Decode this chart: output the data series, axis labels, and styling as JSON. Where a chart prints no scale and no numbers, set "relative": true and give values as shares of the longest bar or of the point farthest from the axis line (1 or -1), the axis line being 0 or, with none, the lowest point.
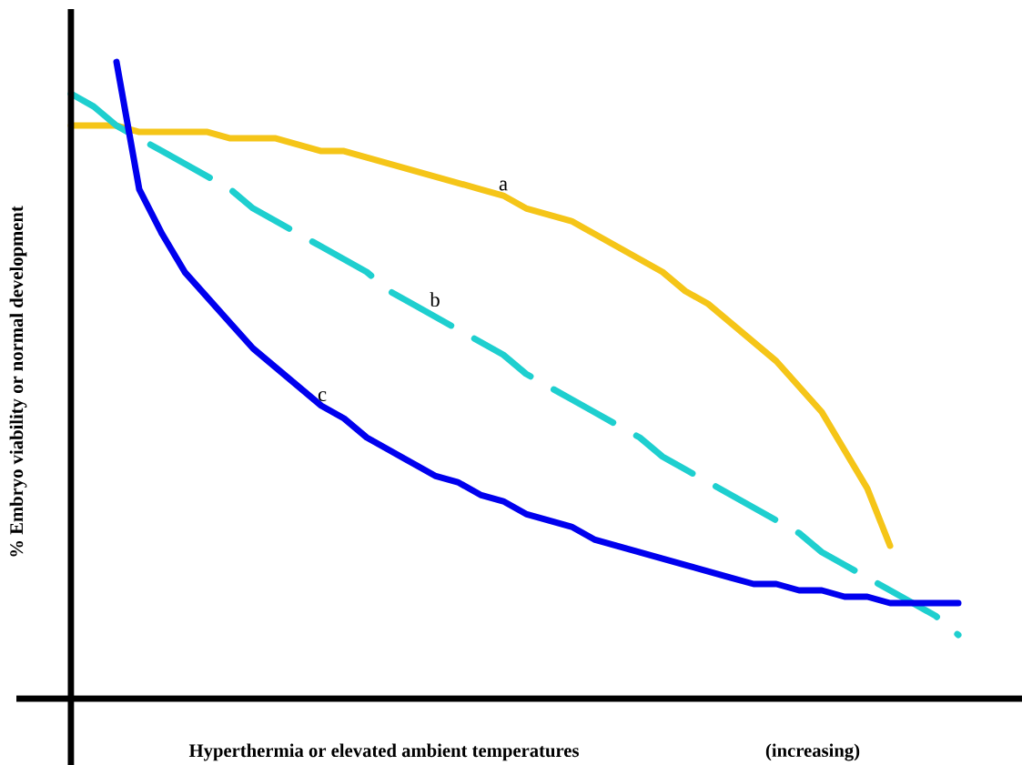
{
  "chart_data": {
    "type": "line",
    "relative": true,
    "marker": "none",
    "xlabel": "Hyperthermia or elevated ambient temperatures",
    "ylabel": "% Embryo viability or normal development",
    "annotations": [
      "(increasing)"
    ],
    "categories": [
      null,
      null,
      null,
      null,
      null,
      null,
      null,
      null,
      null,
      null,
      null,
      null,
      null,
      null,
      null,
      null,
      null,
      null,
      null,
      null,
      null,
      null,
      null,
      null,
      null,
      null,
      null,
      null,
      null,
      null,
      null,
      null,
      null,
      null,
      null,
      null,
      null,
      null,
      null,
      null
    ],
    "series": [
      {
        "name": "a",
        "color": "#f5c518",
        "line_style": "solid",
        "values": [
          0.9,
          0.9,
          0.9,
          0.89,
          0.89,
          0.89,
          0.89,
          0.88,
          0.88,
          0.88,
          0.87,
          0.86,
          0.86,
          0.85,
          0.84,
          0.83,
          0.82,
          0.81,
          0.8,
          0.79,
          0.77,
          0.76,
          0.75,
          0.73,
          0.71,
          0.69,
          0.67,
          0.64,
          0.62,
          0.59,
          0.56,
          0.53,
          0.49,
          0.45,
          0.39,
          0.33,
          0.24,
          null,
          null,
          null
        ]
      },
      {
        "name": "b",
        "color": "#1ecfcf",
        "line_style": "dashed",
        "values": [
          0.95,
          0.93,
          0.9,
          0.88,
          0.86,
          0.84,
          0.82,
          0.8,
          0.77,
          0.75,
          0.73,
          0.71,
          0.69,
          0.67,
          0.64,
          0.62,
          0.6,
          0.58,
          0.56,
          0.54,
          0.51,
          0.49,
          0.47,
          0.45,
          0.43,
          0.41,
          0.38,
          0.36,
          0.34,
          0.32,
          0.3,
          0.28,
          0.26,
          0.23,
          0.21,
          0.19,
          0.17,
          0.15,
          0.13,
          0.1
        ]
      },
      {
        "name": "c",
        "color": "#0000ee",
        "line_style": "solid",
        "values": [
          null,
          null,
          1.0,
          0.8,
          0.73,
          0.67,
          0.63,
          0.59,
          0.55,
          0.52,
          0.49,
          0.46,
          0.44,
          0.41,
          0.39,
          0.37,
          0.35,
          0.34,
          0.32,
          0.31,
          0.29,
          0.28,
          0.27,
          0.25,
          0.24,
          0.23,
          0.22,
          0.21,
          0.2,
          0.19,
          0.18,
          0.18,
          0.17,
          0.17,
          0.16,
          0.16,
          0.15,
          0.15,
          0.15,
          0.15
        ]
      }
    ]
  }
}
